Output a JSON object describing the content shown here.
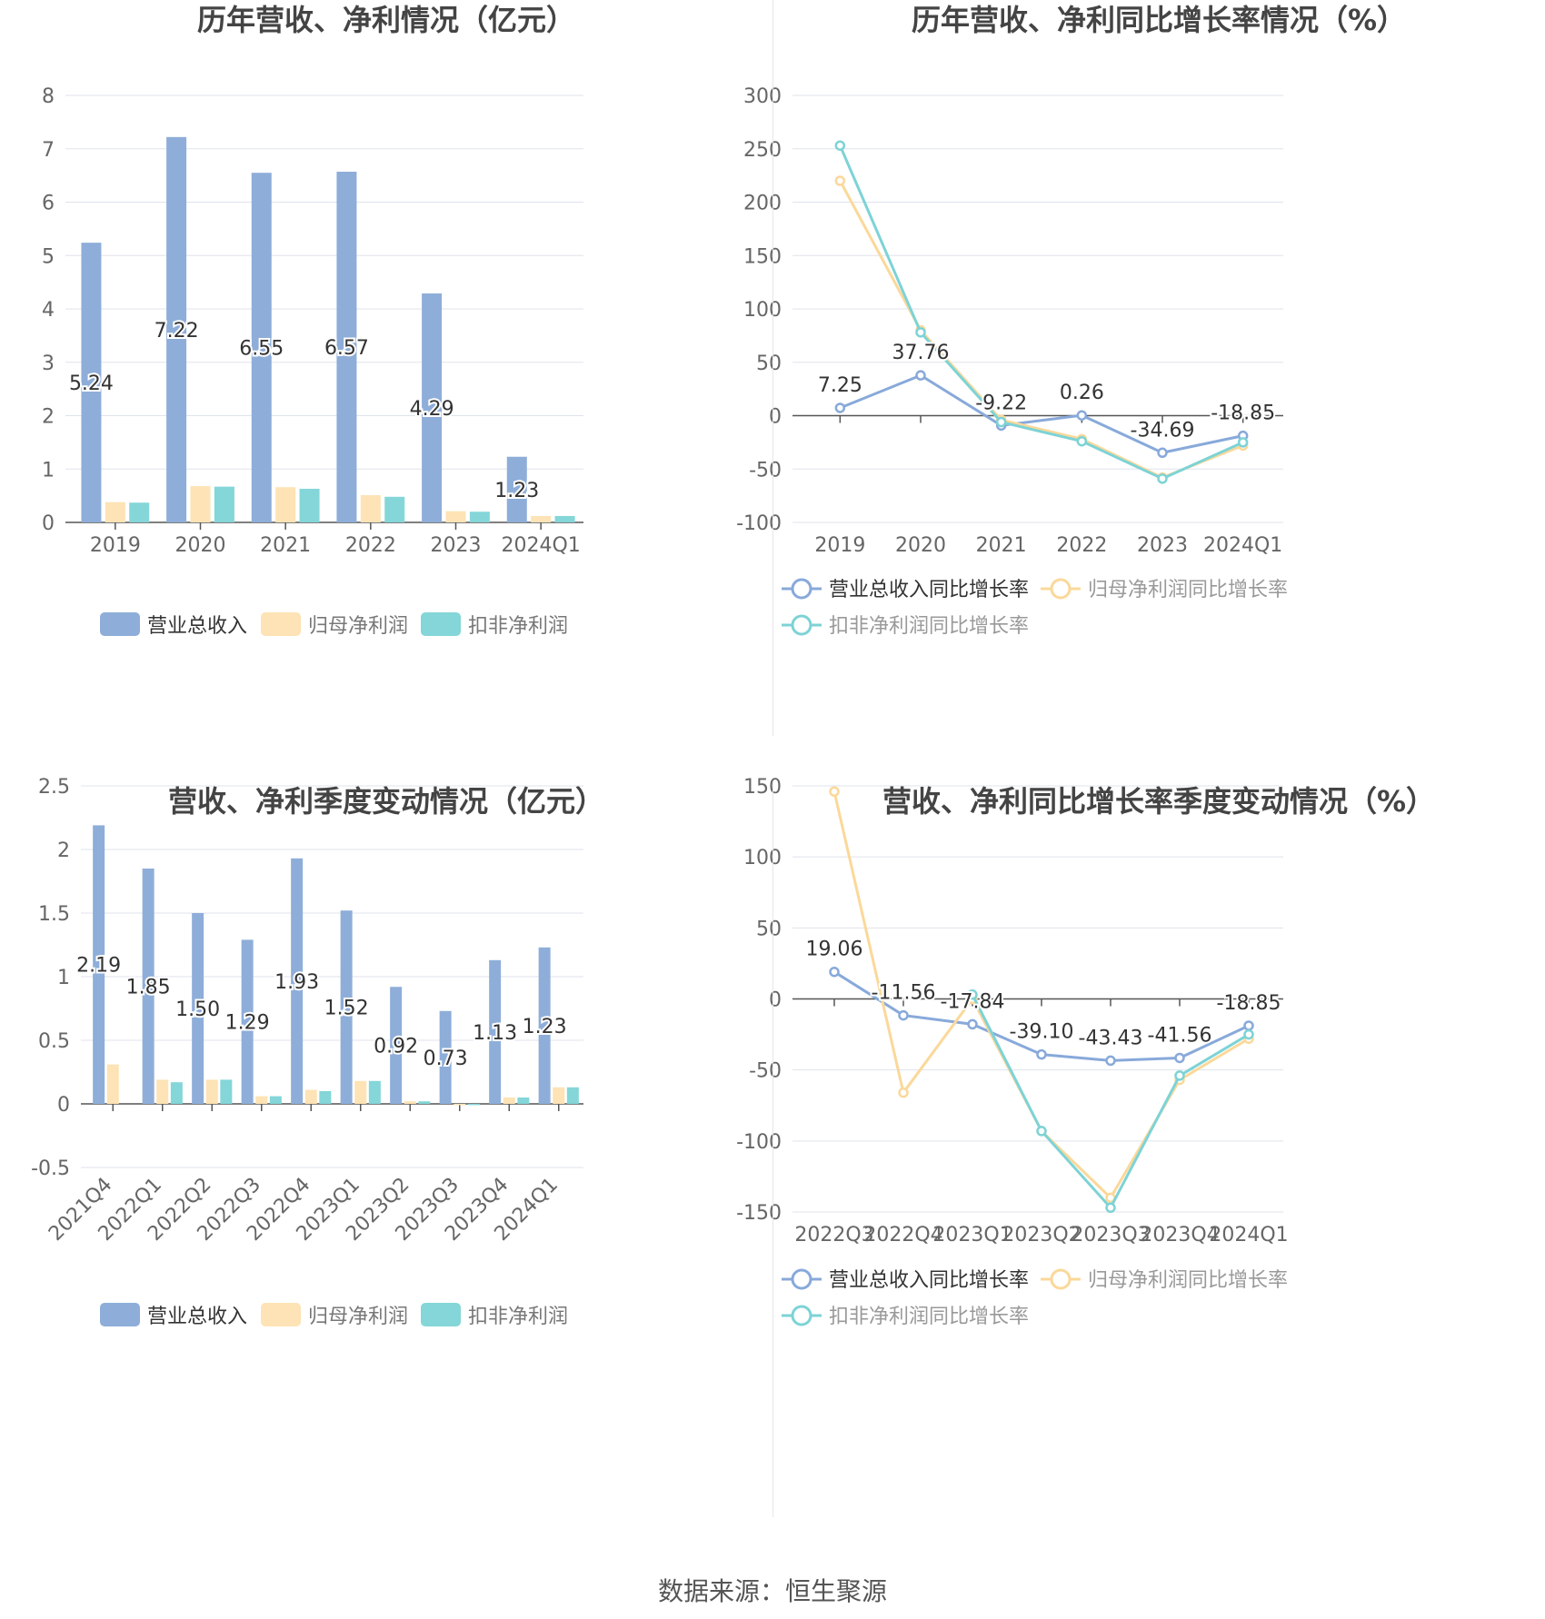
{
  "colors": {
    "revenue": "#8eaed9",
    "netprofit": "#fde3b5",
    "deducted": "#84d6d8",
    "revenue_line": "#88a9da",
    "netprofit_line": "#fbd89a",
    "deducted_line": "#7dd3d6",
    "grid": "#dfe3ec",
    "axis_text": "#666666",
    "title": "#444444",
    "label": "#333333"
  },
  "source": {
    "label": "数据来源：",
    "value": "恒生聚源"
  },
  "chart_data": [
    {
      "id": "annual_amounts",
      "type": "bar",
      "title": "历年营收、净利情况（亿元）",
      "categories": [
        "2019",
        "2020",
        "2021",
        "2022",
        "2023",
        "2024Q1"
      ],
      "ylim": [
        0,
        8
      ],
      "yticks": [
        0,
        1,
        2,
        3,
        4,
        5,
        6,
        7,
        8
      ],
      "grid": true,
      "legend_position": "bottom",
      "series": [
        {
          "name": "营业总收入",
          "values": [
            5.24,
            7.22,
            6.55,
            6.57,
            4.29,
            1.23
          ],
          "labels": [
            "5.24",
            "7.22",
            "6.55",
            "6.57",
            "4.29",
            "1.23"
          ]
        },
        {
          "name": "归母净利润",
          "values": [
            0.38,
            0.68,
            0.66,
            0.51,
            0.21,
            0.12
          ]
        },
        {
          "name": "扣非净利润",
          "values": [
            0.37,
            0.67,
            0.63,
            0.48,
            0.2,
            0.12
          ]
        }
      ]
    },
    {
      "id": "annual_growth",
      "type": "line",
      "title": "历年营收、净利同比增长率情况（%）",
      "categories": [
        "2019",
        "2020",
        "2021",
        "2022",
        "2023",
        "2024Q1"
      ],
      "ylim": [
        -100,
        300
      ],
      "yticks": [
        -100,
        -50,
        0,
        50,
        100,
        150,
        200,
        250,
        300
      ],
      "grid": true,
      "legend_position": "bottom",
      "series": [
        {
          "name": "营业总收入同比增长率",
          "values": [
            7.25,
            37.76,
            -9.22,
            0.26,
            -34.69,
            -18.85
          ],
          "labels": [
            "7.25",
            "37.76",
            "-9.22",
            "0.26",
            "-34.69",
            "-18.85"
          ]
        },
        {
          "name": "归母净利润同比增长率",
          "values": [
            220,
            80,
            -4,
            -22,
            -58,
            -28
          ]
        },
        {
          "name": "扣非净利润同比增长率",
          "values": [
            253,
            78,
            -6,
            -24,
            -59,
            -25
          ]
        }
      ]
    },
    {
      "id": "quarterly_amounts",
      "type": "bar",
      "title": "营收、净利季度变动情况（亿元）",
      "categories": [
        "2021Q4",
        "2022Q1",
        "2022Q2",
        "2022Q3",
        "2022Q4",
        "2023Q1",
        "2023Q2",
        "2023Q3",
        "2023Q4",
        "2024Q1"
      ],
      "ylim": [
        -0.5,
        2.5
      ],
      "yticks": [
        -0.5,
        0,
        0.5,
        1,
        1.5,
        2,
        2.5
      ],
      "grid": true,
      "legend_position": "bottom",
      "series": [
        {
          "name": "营业总收入",
          "values": [
            2.19,
            1.85,
            1.5,
            1.29,
            1.93,
            1.52,
            0.92,
            0.73,
            1.13,
            1.23
          ],
          "labels": [
            "2.19",
            "1.85",
            "1.50",
            "1.29",
            "1.93",
            "1.52",
            "0.92",
            "0.73",
            "1.13",
            "1.23"
          ]
        },
        {
          "name": "归母净利润",
          "values": [
            0.31,
            0.19,
            0.19,
            0.06,
            0.11,
            0.18,
            0.02,
            -0.01,
            0.05,
            0.13
          ]
        },
        {
          "name": "扣非净利润",
          "values": [
            0,
            0.17,
            0.19,
            0.06,
            0.1,
            0.18,
            0.02,
            -0.01,
            0.05,
            0.13
          ]
        }
      ]
    },
    {
      "id": "quarterly_growth",
      "type": "line",
      "title": "营收、净利同比增长率季度变动情况（%）",
      "categories": [
        "2022Q3",
        "2022Q4",
        "2023Q1",
        "2023Q2",
        "2023Q3",
        "2023Q4",
        "2024Q1"
      ],
      "ylim": [
        -150,
        150
      ],
      "yticks": [
        -150,
        -100,
        -50,
        0,
        50,
        100,
        150
      ],
      "grid": true,
      "legend_position": "bottom",
      "series": [
        {
          "name": "营业总收入同比增长率",
          "values": [
            19.06,
            -11.56,
            -17.84,
            -39.1,
            -43.43,
            -41.56,
            -18.85
          ],
          "labels": [
            "19.06",
            "-11.56",
            "-17.84",
            "-39.10",
            "-43.43",
            "-41.56",
            "-18.85"
          ]
        },
        {
          "name": "归母净利润同比增长率",
          "values": [
            146,
            -66,
            0,
            -93,
            -140,
            -57,
            -28
          ]
        },
        {
          "name": "扣非净利润同比增长率",
          "values": [
            null,
            null,
            3,
            -93,
            -147,
            -54,
            -25
          ]
        }
      ]
    }
  ]
}
